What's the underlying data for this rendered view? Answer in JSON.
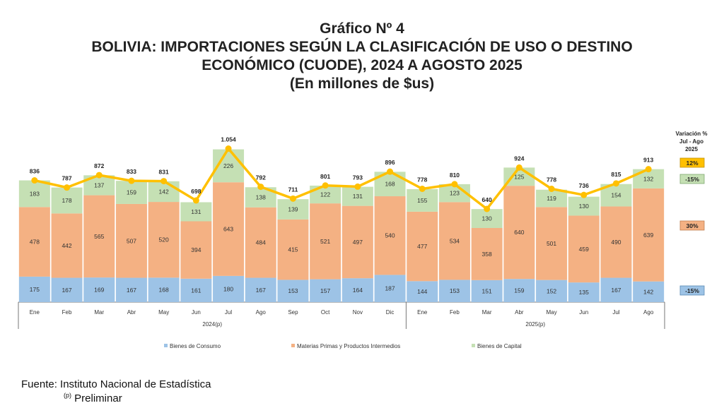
{
  "title": {
    "line1": "Gráfico Nº 4",
    "line2": "BOLIVIA: IMPORTACIONES SEGÚN LA CLASIFICACIÓN DE USO O DESTINO ECONÓMICO (CUODE), 2024 A AGOSTO 2025",
    "line3": "(En millones de $us)"
  },
  "chart_data": {
    "type": "bar",
    "stacked": true,
    "title": "BOLIVIA: IMPORTACIONES SEGÚN LA CLASIFICACIÓN DE USO O DESTINO ECONÓMICO (CUODE), 2024 A AGOSTO 2025",
    "ylabel": "En millones de $us",
    "categories": [
      "Ene",
      "Feb",
      "Mar",
      "Abr",
      "May",
      "Jun",
      "Jul",
      "Ago",
      "Sep",
      "Oct",
      "Nov",
      "Dic",
      "Ene",
      "Feb",
      "Mar",
      "Abr",
      "May",
      "Jun",
      "Jul",
      "Ago"
    ],
    "groups": [
      {
        "label": "2024(p)",
        "count": 12
      },
      {
        "label": "2025(p)",
        "count": 8
      }
    ],
    "series": [
      {
        "name": "Bienes de Consumo",
        "color": "#9DC3E6",
        "values": [
          175,
          167,
          169,
          167,
          168,
          161,
          180,
          167,
          153,
          157,
          164,
          187,
          144,
          153,
          151,
          159,
          152,
          135,
          167,
          142
        ]
      },
      {
        "name": "Materias Primas y Productos Intermedios",
        "color": "#F4B183",
        "values": [
          478,
          442,
          565,
          507,
          520,
          394,
          643,
          484,
          415,
          521,
          497,
          540,
          477,
          534,
          358,
          640,
          501,
          459,
          490,
          639
        ]
      },
      {
        "name": "Bienes de Capital",
        "color": "#C5E0B4",
        "values": [
          183,
          178,
          137,
          159,
          142,
          131,
          226,
          138,
          139,
          122,
          131,
          168,
          155,
          123,
          130,
          125,
          119,
          130,
          154,
          132
        ]
      }
    ],
    "totals": {
      "name": "Total",
      "color": "#FFC000",
      "values": [
        836,
        787,
        872,
        833,
        831,
        698,
        1054,
        792,
        711,
        801,
        793,
        896,
        778,
        810,
        640,
        924,
        778,
        736,
        815,
        913
      ],
      "labels": [
        "836",
        "787",
        "872",
        "833",
        "831",
        "698",
        "1.054",
        "792",
        "711",
        "801",
        "793",
        "896",
        "778",
        "810",
        "640",
        "924",
        "778",
        "736",
        "815",
        "913"
      ]
    },
    "ylim": [
      0,
      1100
    ],
    "variation": {
      "title_lines": [
        "Variación %",
        "Jul - Ago",
        "2025"
      ],
      "items": [
        {
          "series": "Total",
          "value": "12%",
          "bg": "#FFC000",
          "border": "#C09000"
        },
        {
          "series": "Bienes de Capital",
          "value": "-15%",
          "bg": "#C5E0B4",
          "border": "#7FA870"
        },
        {
          "series": "Materias Primas y Productos Intermedios",
          "value": "30%",
          "bg": "#F4B183",
          "border": "#C07F50"
        },
        {
          "series": "Bienes de Consumo",
          "value": "-15%",
          "bg": "#9DC3E6",
          "border": "#5A8AB5"
        }
      ]
    }
  },
  "source": {
    "line1": "Fuente: Instituto Nacional de Estadística",
    "note_mark": "(p)",
    "line2": "Preliminar"
  }
}
